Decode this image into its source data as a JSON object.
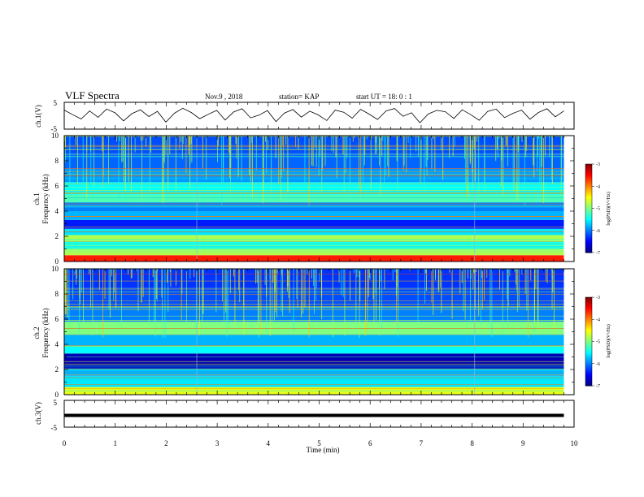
{
  "header": {
    "title": "VLF Spectra",
    "date": "Nov.9 , 2018",
    "station": "station= KAP",
    "start": "start UT =  18: 0  : 1"
  },
  "chart_data": [
    {
      "type": "line",
      "id": "ch1-waveform",
      "ylabel": "ch.1(V)",
      "ylim": [
        -5,
        5
      ],
      "xlim": [
        0,
        10
      ],
      "yticks": [
        "5",
        "-5"
      ],
      "x_end": 9.8,
      "y": [
        2.1,
        0.4,
        -1.2,
        1.8,
        -0.6,
        2.5,
        1.1,
        -1.9,
        0.8,
        2.2,
        -0.3,
        1.6,
        -2.4,
        0.9,
        2.8,
        1.2,
        -1.1,
        0.5,
        2.0,
        -1.6,
        1.4,
        2.6,
        -0.8,
        0.2,
        1.9,
        -2.2,
        1.0,
        2.3,
        -0.5,
        1.7,
        0.3,
        -1.8,
        2.1,
        1.3,
        -0.9,
        2.4,
        0.6,
        -1.4,
        1.8,
        2.7,
        -0.2,
        1.1,
        -2.6,
        0.7,
        2.0,
        1.5,
        -1.0,
        2.2,
        0.4,
        -1.7,
        1.6,
        2.5,
        -0.7,
        0.9,
        2.1,
        -1.3,
        1.2,
        2.6,
        -0.4,
        1.8
      ]
    },
    {
      "type": "heatmap",
      "id": "ch1-spectrogram",
      "xlabel": "",
      "ylabel": "ch.1",
      "ylabel2": "Frequency (kHz)",
      "xlim": [
        0,
        10
      ],
      "ylim": [
        0,
        10
      ],
      "yticks": [
        "0",
        "2",
        "4",
        "6",
        "8",
        "10"
      ],
      "x_end": 9.8,
      "color_scale": {
        "label": "log(PSD)(V²/Hz)",
        "range": [
          -7,
          -3
        ],
        "ticks": [
          "-3",
          "-4",
          "-5",
          "-6",
          "-7"
        ]
      },
      "segment_boundaries_min": [
        2.6,
        8.05
      ],
      "bands_khz": [
        {
          "from": 0.0,
          "to": 0.5,
          "level": -3.6
        },
        {
          "from": 0.5,
          "to": 1.0,
          "level": -4.9
        },
        {
          "from": 1.0,
          "to": 1.6,
          "level": -5.4
        },
        {
          "from": 1.6,
          "to": 2.1,
          "level": -4.8
        },
        {
          "from": 2.1,
          "to": 2.6,
          "level": -5.6
        },
        {
          "from": 2.6,
          "to": 3.3,
          "level": -6.4
        },
        {
          "from": 3.3,
          "to": 4.0,
          "level": -5.8
        },
        {
          "from": 4.0,
          "to": 4.7,
          "level": -6.0
        },
        {
          "from": 4.7,
          "to": 5.3,
          "level": -5.2
        },
        {
          "from": 5.3,
          "to": 6.3,
          "level": -5.5
        },
        {
          "from": 6.3,
          "to": 7.4,
          "level": -5.9
        },
        {
          "from": 7.4,
          "to": 8.6,
          "level": -6.1
        },
        {
          "from": 8.6,
          "to": 10.0,
          "level": -6.2
        }
      ]
    },
    {
      "type": "heatmap",
      "id": "ch2-spectrogram",
      "xlabel": "",
      "ylabel": "ch.2",
      "ylabel2": "Frequency (kHz)",
      "xlim": [
        0,
        10
      ],
      "ylim": [
        0,
        10
      ],
      "yticks": [
        "0",
        "2",
        "4",
        "6",
        "8",
        "10"
      ],
      "x_end": 9.8,
      "color_scale": {
        "label": "log(PSD)(V²/Hz)",
        "range": [
          -7,
          -3
        ],
        "ticks": [
          "-3",
          "-4",
          "-5",
          "-6",
          "-7"
        ]
      },
      "segment_boundaries_min": [
        2.6,
        8.05
      ],
      "bands_khz": [
        {
          "from": 0.0,
          "to": 0.6,
          "level": -4.6
        },
        {
          "from": 0.6,
          "to": 1.5,
          "level": -5.6
        },
        {
          "from": 1.5,
          "to": 2.0,
          "level": -5.9
        },
        {
          "from": 2.0,
          "to": 3.3,
          "level": -6.8
        },
        {
          "from": 3.3,
          "to": 3.9,
          "level": -5.5
        },
        {
          "from": 3.9,
          "to": 4.8,
          "level": -5.8
        },
        {
          "from": 4.8,
          "to": 5.8,
          "level": -5.0
        },
        {
          "from": 5.8,
          "to": 7.0,
          "level": -6.0
        },
        {
          "from": 7.0,
          "to": 8.5,
          "level": -6.2
        },
        {
          "from": 8.5,
          "to": 10.0,
          "level": -6.3
        }
      ]
    },
    {
      "type": "line",
      "id": "ch3-waveform",
      "ylabel": "ch.3(V)",
      "xlabel": "Time (min)",
      "ylim": [
        -5,
        5
      ],
      "xlim": [
        0,
        10
      ],
      "yticks": [
        "5",
        "-5"
      ],
      "xticks": [
        "0",
        "1",
        "2",
        "3",
        "4",
        "5",
        "6",
        "7",
        "8",
        "9",
        "10"
      ],
      "x_end": 9.8,
      "constant_value": 0
    }
  ]
}
